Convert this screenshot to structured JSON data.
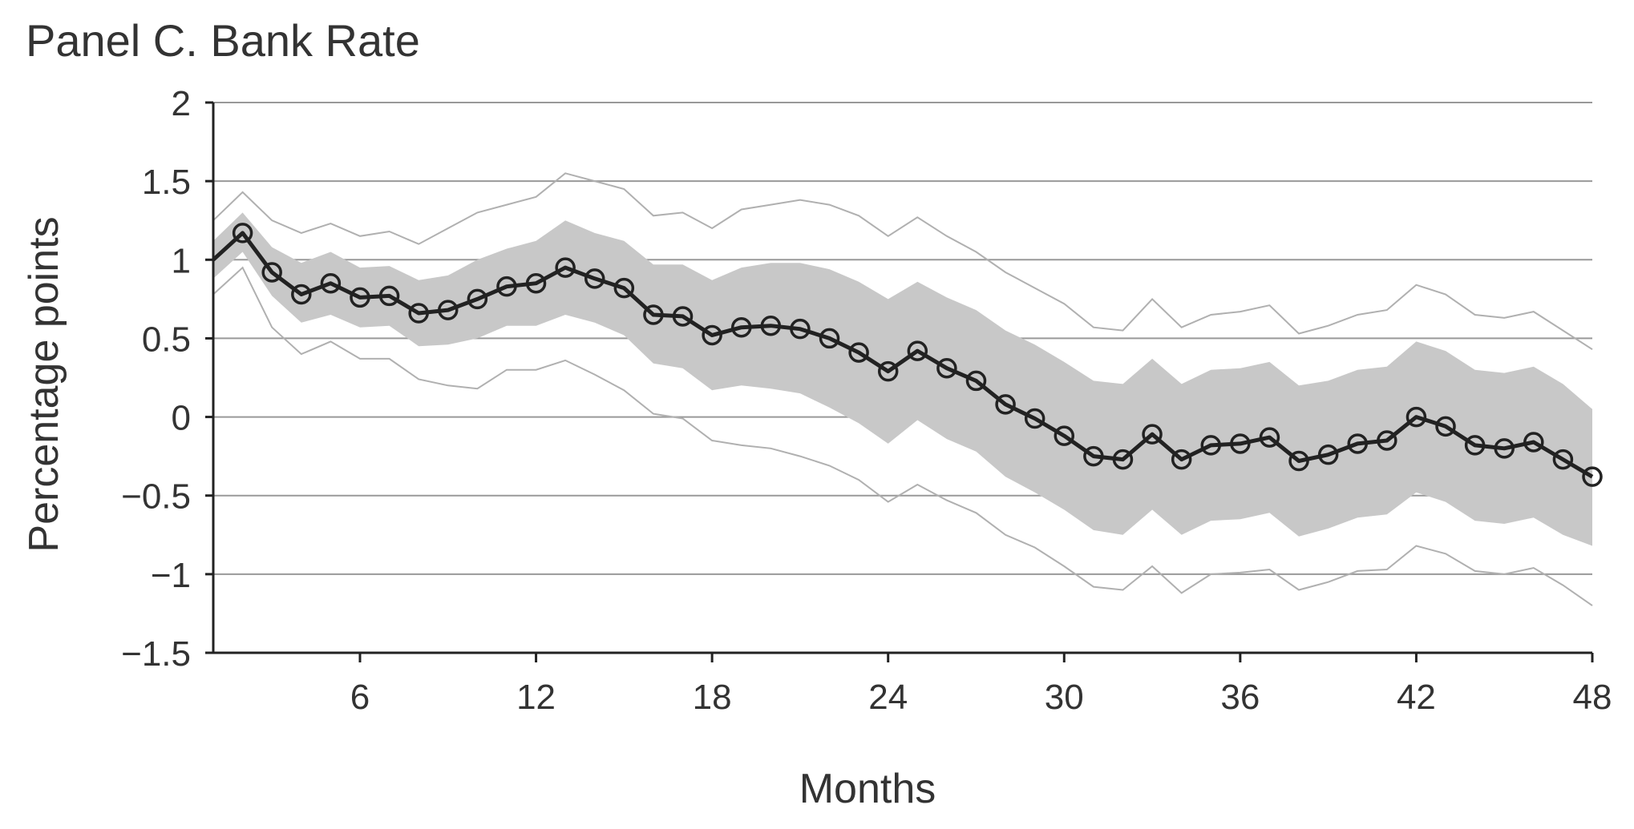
{
  "chart_data": {
    "type": "line",
    "title": "Panel C. Bank Rate",
    "xlabel": "Months",
    "ylabel": "Percentage points",
    "xlim": [
      1,
      48
    ],
    "ylim": [
      -1.5,
      2
    ],
    "x_ticks": [
      6,
      12,
      18,
      24,
      30,
      36,
      42,
      48
    ],
    "x_tick_labels": [
      "6",
      "12",
      "18",
      "24",
      "30",
      "36",
      "42",
      "48"
    ],
    "y_ticks": [
      -1.5,
      -1,
      -0.5,
      0,
      0.5,
      1,
      1.5,
      2
    ],
    "y_tick_labels": [
      "−1.5",
      "−1",
      "−0.5",
      "0",
      "0.5",
      "1",
      "1.5",
      "2"
    ],
    "grid": "horizontal",
    "x": [
      1,
      2,
      3,
      4,
      5,
      6,
      7,
      8,
      9,
      10,
      11,
      12,
      13,
      14,
      15,
      16,
      17,
      18,
      19,
      20,
      21,
      22,
      23,
      24,
      25,
      26,
      27,
      28,
      29,
      30,
      31,
      32,
      33,
      34,
      35,
      36,
      37,
      38,
      39,
      40,
      41,
      42,
      43,
      44,
      45,
      46,
      47,
      48
    ],
    "series": [
      {
        "role": "point-estimate",
        "marker": "circle",
        "values": [
          1.0,
          1.17,
          0.92,
          0.78,
          0.85,
          0.76,
          0.77,
          0.66,
          0.68,
          0.75,
          0.83,
          0.85,
          0.95,
          0.88,
          0.82,
          0.65,
          0.64,
          0.52,
          0.57,
          0.58,
          0.56,
          0.5,
          0.41,
          0.29,
          0.42,
          0.31,
          0.23,
          0.08,
          -0.01,
          -0.12,
          -0.25,
          -0.27,
          -0.11,
          -0.27,
          -0.18,
          -0.17,
          -0.13,
          -0.28,
          -0.24,
          -0.17,
          -0.15,
          0.0,
          -0.06,
          -0.18,
          -0.2,
          -0.16,
          -0.27,
          -0.38
        ]
      },
      {
        "role": "inner-band-upper",
        "values": [
          1.12,
          1.3,
          1.08,
          0.98,
          1.05,
          0.95,
          0.96,
          0.87,
          0.9,
          1.0,
          1.07,
          1.12,
          1.25,
          1.17,
          1.12,
          0.97,
          0.97,
          0.87,
          0.95,
          0.98,
          0.98,
          0.94,
          0.86,
          0.75,
          0.86,
          0.76,
          0.68,
          0.55,
          0.46,
          0.35,
          0.23,
          0.21,
          0.37,
          0.21,
          0.3,
          0.31,
          0.35,
          0.2,
          0.23,
          0.3,
          0.32,
          0.48,
          0.42,
          0.3,
          0.28,
          0.32,
          0.21,
          0.05
        ]
      },
      {
        "role": "inner-band-lower",
        "values": [
          0.88,
          1.05,
          0.77,
          0.6,
          0.65,
          0.57,
          0.58,
          0.45,
          0.46,
          0.5,
          0.58,
          0.58,
          0.65,
          0.6,
          0.52,
          0.34,
          0.31,
          0.17,
          0.2,
          0.18,
          0.15,
          0.06,
          -0.04,
          -0.17,
          -0.02,
          -0.14,
          -0.22,
          -0.38,
          -0.48,
          -0.59,
          -0.72,
          -0.75,
          -0.59,
          -0.75,
          -0.66,
          -0.65,
          -0.61,
          -0.76,
          -0.71,
          -0.64,
          -0.62,
          -0.48,
          -0.54,
          -0.66,
          -0.68,
          -0.64,
          -0.75,
          -0.82
        ]
      },
      {
        "role": "outer-band-upper",
        "values": [
          1.25,
          1.43,
          1.25,
          1.17,
          1.23,
          1.15,
          1.18,
          1.1,
          1.2,
          1.3,
          1.35,
          1.4,
          1.55,
          1.5,
          1.45,
          1.28,
          1.3,
          1.2,
          1.32,
          1.35,
          1.38,
          1.35,
          1.28,
          1.15,
          1.27,
          1.15,
          1.05,
          0.92,
          0.82,
          0.72,
          0.57,
          0.55,
          0.75,
          0.57,
          0.65,
          0.67,
          0.71,
          0.53,
          0.58,
          0.65,
          0.68,
          0.84,
          0.78,
          0.65,
          0.63,
          0.67,
          0.55,
          0.43
        ]
      },
      {
        "role": "outer-band-lower",
        "values": [
          0.78,
          0.95,
          0.57,
          0.4,
          0.48,
          0.37,
          0.37,
          0.24,
          0.2,
          0.18,
          0.3,
          0.3,
          0.36,
          0.27,
          0.17,
          0.02,
          -0.01,
          -0.15,
          -0.18,
          -0.2,
          -0.25,
          -0.31,
          -0.4,
          -0.54,
          -0.43,
          -0.53,
          -0.61,
          -0.75,
          -0.83,
          -0.95,
          -1.08,
          -1.1,
          -0.95,
          -1.12,
          -1.0,
          -0.99,
          -0.97,
          -1.1,
          -1.05,
          -0.98,
          -0.97,
          -0.82,
          -0.87,
          -0.98,
          -1.0,
          -0.96,
          -1.07,
          -1.2
        ]
      }
    ],
    "colors": {
      "line": "#222222",
      "band_fill": "#c8c8c8",
      "outer_lines": "#b0b0b0",
      "grid": "#999999",
      "axis": "#222222"
    }
  }
}
